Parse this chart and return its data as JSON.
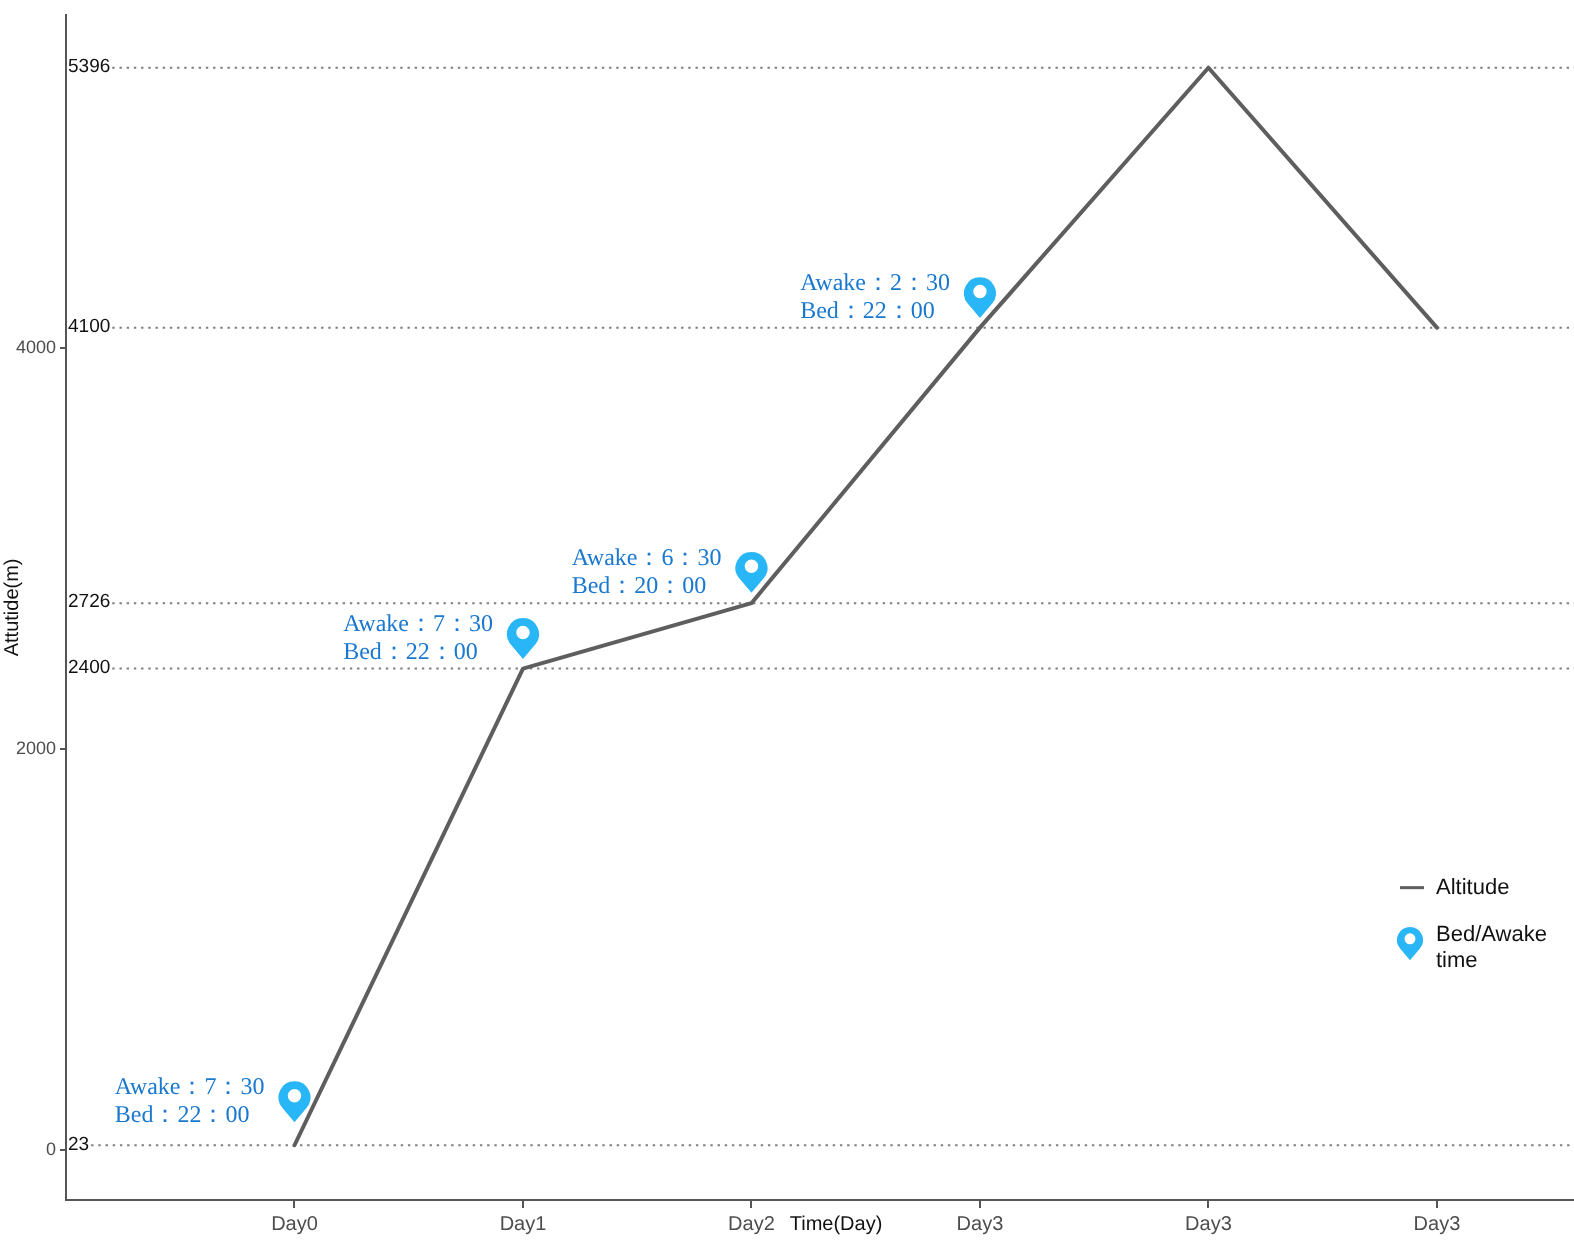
{
  "chart_data": {
    "type": "line",
    "xlabel": "Time(Day)",
    "ylabel": "Attutide(m)",
    "categories": [
      "Day0",
      "Day1",
      "Day2",
      "Day3",
      "Day3",
      "Day3"
    ],
    "series": [
      {
        "name": "Altitude",
        "color": "#5e5e5e",
        "marker": "none",
        "values": [
          23,
          2400,
          2726,
          4100,
          5396,
          4100
        ]
      },
      {
        "name": "Bed/Awake time",
        "type": "scatter",
        "color": "#29b6f6",
        "values": [
          240,
          2550,
          2880,
          4250,
          null,
          null
        ]
      }
    ],
    "ylim": [
      -250,
      5660
    ],
    "yticks": [
      0,
      2000,
      4000
    ],
    "ref_lines": [
      {
        "axis": "y",
        "value": 23,
        "label": "23",
        "color": "#7f7f7f",
        "line_style": "dotted"
      },
      {
        "axis": "y",
        "value": 2400,
        "label": "2400",
        "color": "#7f7f7f",
        "line_style": "dotted"
      },
      {
        "axis": "y",
        "value": 2726,
        "label": "2726",
        "color": "#7f7f7f",
        "line_style": "dotted"
      },
      {
        "axis": "y",
        "value": 4100,
        "label": "4100",
        "color": "#7f7f7f",
        "line_style": "dotted"
      },
      {
        "axis": "y",
        "value": 5396,
        "label": "5396",
        "color": "#7f7f7f",
        "line_style": "dotted"
      }
    ],
    "annotations": [
      {
        "text": "Awake：7：30\nBed：22：00",
        "x": "Day0",
        "y": 240
      },
      {
        "text": "Awake：7：30\nBed：22：00",
        "x": "Day1",
        "y": 2550
      },
      {
        "text": "Awake：6：30\nBed：20：00",
        "x": "Day2",
        "y": 2880
      },
      {
        "text": "Awake：2：30\nBed：22：00",
        "x": "Day3",
        "y": 4250
      }
    ],
    "legend": "right",
    "grid": false
  }
}
